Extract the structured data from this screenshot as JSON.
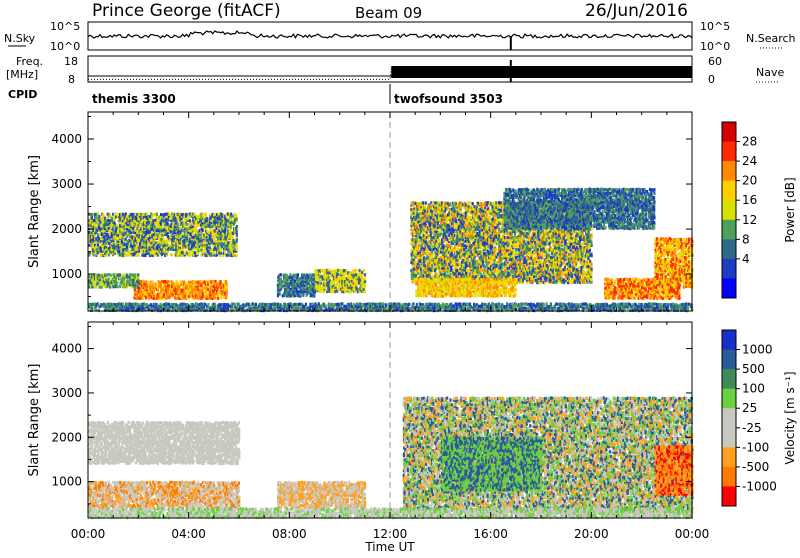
{
  "header": {
    "station": "Prince George (fitACF)",
    "beam": "Beam 09",
    "date": "26/Jun/2016"
  },
  "params": {
    "nsky_label": "N.Sky",
    "nsky_ticks": [
      "10^5",
      "10^0"
    ],
    "nsearch_label": "N.Search",
    "freq_label_1": "Freq.",
    "freq_label_2": "[MHz]",
    "freq_ticks": [
      "18",
      "8"
    ],
    "nave_label": "Nave",
    "nave_ticks": [
      "60",
      "0"
    ],
    "cpid_label": "CPID",
    "cpid_segments": [
      {
        "name": "themis 3300",
        "start": 0,
        "end": 12
      },
      {
        "name": "twofsound 3503",
        "start": 12,
        "end": 24
      }
    ],
    "freq_series": [
      {
        "x": 0,
        "y": 10.3
      },
      {
        "x": 12,
        "y": 10.3
      },
      {
        "x": 12,
        "y": 10.3
      },
      {
        "x": 24,
        "y": 10.3
      }
    ],
    "nave_series": [
      {
        "x": 0,
        "y": 6
      },
      {
        "x": 12,
        "y": 6
      },
      {
        "x": 12.05,
        "y": 30
      },
      {
        "x": 24,
        "y": 30
      }
    ]
  },
  "chart_data": [
    {
      "type": "heatmap",
      "name": "power",
      "ylabel": "Slant Range [km]",
      "yticks": [
        1000,
        2000,
        3000,
        4000
      ],
      "ylim": [
        180,
        4600
      ],
      "xlim": [
        0,
        24
      ],
      "colorbar_label": "Power [dB]",
      "colorbar_ticks": [
        "28",
        "24",
        "20",
        "16",
        "12",
        "8",
        "4"
      ],
      "colorbar_colors": [
        "#d40000",
        "#ff2a00",
        "#ff8c00",
        "#ffd000",
        "#d8e000",
        "#4fa05a",
        "#2e6b86",
        "#1c3cc4",
        "#0000ff"
      ],
      "regions": [
        {
          "t0": 0.0,
          "t1": 5.9,
          "r0": 1400,
          "r1": 2350,
          "levels": [
            4,
            8,
            12,
            16,
            20
          ]
        },
        {
          "t0": 1.8,
          "t1": 5.5,
          "r0": 450,
          "r1": 850,
          "levels": [
            20,
            24,
            28,
            24
          ]
        },
        {
          "t0": 0.0,
          "t1": 2.0,
          "r0": 700,
          "r1": 1000,
          "levels": [
            8,
            12,
            16
          ]
        },
        {
          "t0": 7.5,
          "t1": 9.0,
          "r0": 500,
          "r1": 1000,
          "levels": [
            4,
            8,
            12
          ]
        },
        {
          "t0": 9.0,
          "t1": 11.0,
          "r0": 600,
          "r1": 1100,
          "levels": [
            8,
            16,
            20
          ]
        },
        {
          "t0": 12.8,
          "t1": 20.0,
          "r0": 800,
          "r1": 2600,
          "levels": [
            4,
            8,
            12,
            16,
            20,
            24
          ]
        },
        {
          "t0": 13.0,
          "t1": 17.0,
          "r0": 500,
          "r1": 900,
          "levels": [
            16,
            20,
            24
          ]
        },
        {
          "t0": 20.5,
          "t1": 23.5,
          "r0": 450,
          "r1": 900,
          "levels": [
            20,
            24,
            28
          ]
        },
        {
          "t0": 22.5,
          "t1": 24.0,
          "r0": 700,
          "r1": 1800,
          "levels": [
            16,
            20,
            24,
            28
          ]
        },
        {
          "t0": 16.5,
          "t1": 22.5,
          "r0": 2000,
          "r1": 2900,
          "levels": [
            4,
            8,
            12
          ]
        },
        {
          "t0": 0.0,
          "t1": 24.0,
          "r0": 180,
          "r1": 350,
          "levels": [
            4,
            8,
            12
          ]
        }
      ]
    },
    {
      "type": "heatmap",
      "name": "velocity",
      "ylabel": "Slant Range [km]",
      "xlabel": "Time UT",
      "xticks": [
        "00:00",
        "04:00",
        "08:00",
        "12:00",
        "16:00",
        "20:00",
        "00:00"
      ],
      "yticks": [
        1000,
        2000,
        3000,
        4000
      ],
      "ylim": [
        180,
        4600
      ],
      "xlim": [
        0,
        24
      ],
      "colorbar_label": "Velocity [m s⁻¹]",
      "colorbar_ticks": [
        "1000",
        "500",
        "100",
        "25",
        "-25",
        "-100",
        "-500",
        "-1000"
      ],
      "colorbar_colors": [
        "#1a2fc8",
        "#2a5a9a",
        "#3e8a5a",
        "#6ad040",
        "#c8c8c0",
        "#c8c8c0",
        "#ffa020",
        "#ff7a00",
        "#ff0000"
      ],
      "regions": [
        {
          "t0": 0.0,
          "t1": 6.0,
          "r0": 1400,
          "r1": 2350,
          "levels": [
            0,
            0,
            0
          ]
        },
        {
          "t0": 0.0,
          "t1": 6.0,
          "r0": 400,
          "r1": 1000,
          "levels": [
            0,
            -100,
            -500,
            0
          ]
        },
        {
          "t0": 7.5,
          "t1": 11.0,
          "r0": 400,
          "r1": 1000,
          "levels": [
            0,
            -100
          ]
        },
        {
          "t0": 12.5,
          "t1": 24.0,
          "r0": 300,
          "r1": 2900,
          "levels": [
            0,
            100,
            500,
            -100
          ]
        },
        {
          "t0": 14.0,
          "t1": 18.0,
          "r0": 800,
          "r1": 2000,
          "levels": [
            100,
            500
          ]
        },
        {
          "t0": 22.5,
          "t1": 24.0,
          "r0": 700,
          "r1": 1800,
          "levels": [
            -500,
            -1000,
            -100
          ]
        },
        {
          "t0": 0.0,
          "t1": 24.0,
          "r0": 180,
          "r1": 400,
          "levels": [
            0,
            100,
            -25
          ]
        }
      ]
    }
  ],
  "axis": {
    "xticks": [
      "00:00",
      "04:00",
      "08:00",
      "12:00",
      "16:00",
      "20:00",
      "00:00"
    ],
    "xlabel": "Time UT"
  }
}
